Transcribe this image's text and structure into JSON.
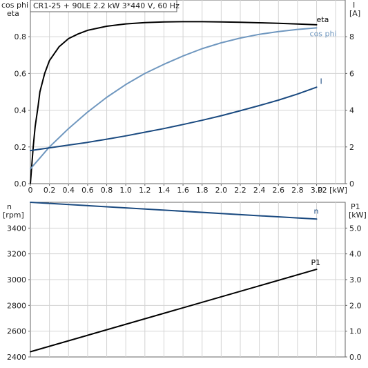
{
  "header": {
    "title": "CR1-25 + 90LE   2.2 kW   3*440 V, 60 Hz"
  },
  "chart_data": [
    {
      "type": "line",
      "title": "CR1-25 + 90LE   2.2 kW   3*440 V, 60 Hz",
      "xlabel": "P2 [kW]",
      "x_ticks": [
        "0",
        "0.2",
        "0.4",
        "0.6",
        "0.8",
        "1.0",
        "1.2",
        "1.4",
        "1.6",
        "1.8",
        "2.0",
        "2.2",
        "2.4",
        "2.6",
        "2.8",
        "3.0"
      ],
      "xlim": [
        0,
        3.3
      ],
      "ylabel_left_1": "cos phi",
      "ylabel_left_2": "eta",
      "ylim_left": [
        0,
        1.0
      ],
      "y_ticks_left": [
        "0.0",
        "0.2",
        "0.4",
        "0.6",
        "0.8"
      ],
      "ylabel_right_1": "I",
      "ylabel_right_2": "[A]",
      "ylim_right": [
        0,
        10
      ],
      "y_ticks_right": [
        "0",
        "2",
        "4",
        "6",
        "8"
      ],
      "grid": true,
      "series": [
        {
          "name": "eta",
          "axis": "left",
          "color": "#000000",
          "x": [
            0,
            0.03,
            0.05,
            0.08,
            0.1,
            0.15,
            0.2,
            0.3,
            0.4,
            0.5,
            0.6,
            0.8,
            1.0,
            1.2,
            1.4,
            1.6,
            1.8,
            2.0,
            2.2,
            2.4,
            2.6,
            2.8,
            3.0
          ],
          "values": [
            0.0,
            0.2,
            0.31,
            0.42,
            0.5,
            0.6,
            0.67,
            0.745,
            0.79,
            0.815,
            0.835,
            0.857,
            0.87,
            0.877,
            0.881,
            0.882,
            0.882,
            0.881,
            0.879,
            0.876,
            0.873,
            0.869,
            0.865
          ]
        },
        {
          "name": "cos phi",
          "axis": "left",
          "color": "#6f97bf",
          "x": [
            0,
            0.05,
            0.1,
            0.2,
            0.3,
            0.4,
            0.5,
            0.6,
            0.8,
            1.0,
            1.2,
            1.4,
            1.6,
            1.8,
            2.0,
            2.2,
            2.4,
            2.6,
            2.8,
            3.0
          ],
          "values": [
            0.08,
            0.11,
            0.14,
            0.2,
            0.25,
            0.3,
            0.345,
            0.39,
            0.47,
            0.54,
            0.6,
            0.65,
            0.695,
            0.735,
            0.767,
            0.793,
            0.813,
            0.828,
            0.84,
            0.848
          ]
        },
        {
          "name": "I",
          "axis": "right",
          "color": "#1a4a80",
          "x": [
            0,
            0.2,
            0.4,
            0.6,
            0.8,
            1.0,
            1.2,
            1.4,
            1.6,
            1.8,
            2.0,
            2.2,
            2.4,
            2.6,
            2.8,
            3.0
          ],
          "values": [
            1.8,
            1.95,
            2.1,
            2.25,
            2.42,
            2.6,
            2.8,
            3.0,
            3.22,
            3.45,
            3.7,
            3.97,
            4.25,
            4.55,
            4.88,
            5.25
          ]
        }
      ]
    },
    {
      "type": "line",
      "xlim": [
        0,
        3.3
      ],
      "ylabel_left_1": "n",
      "ylabel_left_2": "[rpm]",
      "ylim_left": [
        2400,
        3600
      ],
      "y_ticks_left": [
        "2400",
        "2600",
        "2800",
        "3000",
        "3200",
        "3400"
      ],
      "ylabel_right_1": "P1",
      "ylabel_right_2": "[kW]",
      "ylim_right": [
        0,
        6
      ],
      "y_ticks_right": [
        "0.0",
        "1.0",
        "2.0",
        "3.0",
        "4.0",
        "5.0"
      ],
      "grid": true,
      "series": [
        {
          "name": "n",
          "axis": "left",
          "color": "#1a4a80",
          "x": [
            0,
            3.0
          ],
          "values": [
            3600,
            3470
          ]
        },
        {
          "name": "P1",
          "axis": "right",
          "color": "#000000",
          "x": [
            0,
            3.0
          ],
          "values": [
            0.2,
            3.4
          ]
        }
      ]
    }
  ]
}
